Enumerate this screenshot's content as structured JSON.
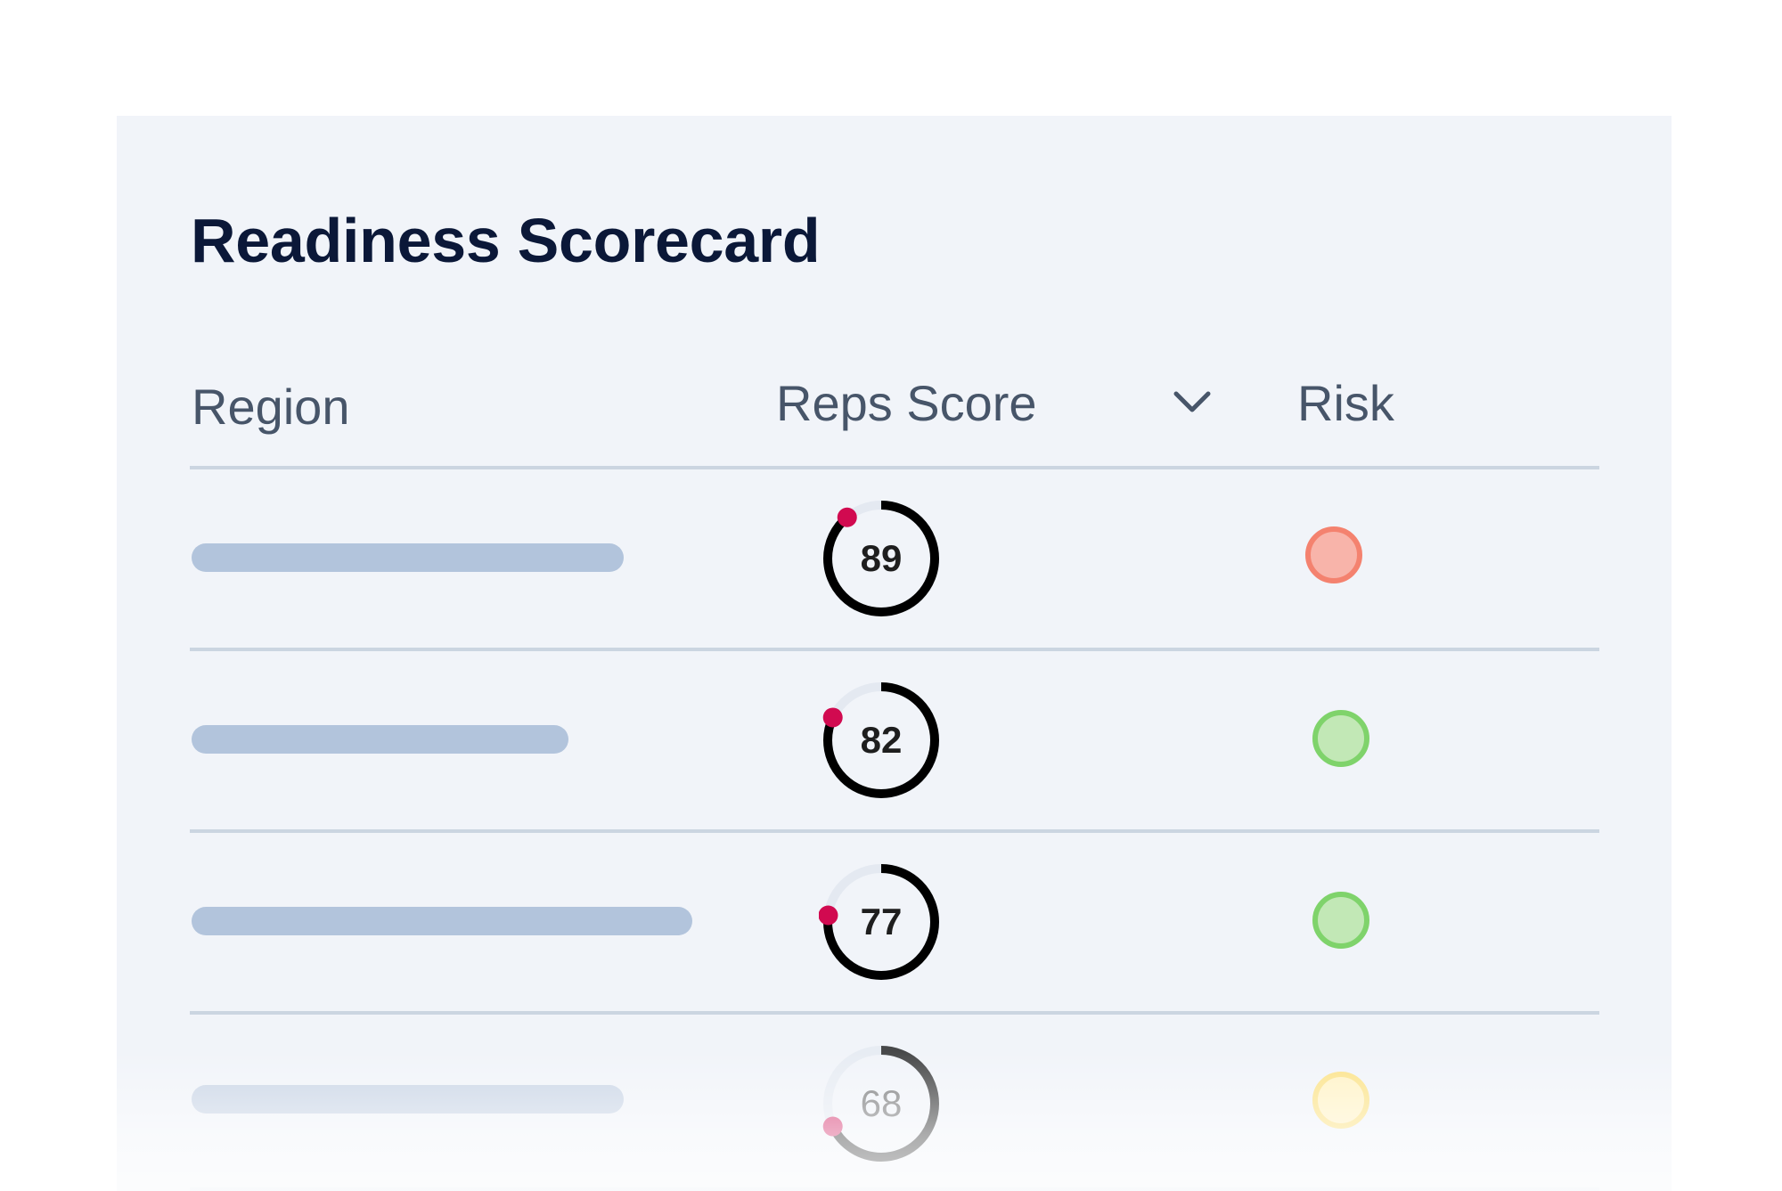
{
  "scorecard": {
    "title": "Readiness Scorecard",
    "columns": {
      "region": "Region",
      "reps_score": "Reps Score",
      "risk": "Risk"
    },
    "sort_icon": "chevron-down-icon",
    "rows": [
      {
        "score": "89",
        "score_value": 89,
        "risk_level": "high",
        "risk_fill": "#f8b4aa",
        "risk_border": "#f4826f"
      },
      {
        "score": "82",
        "score_value": 82,
        "risk_level": "low",
        "risk_fill": "#c2e8b6",
        "risk_border": "#7fd36b"
      },
      {
        "score": "77",
        "score_value": 77,
        "risk_level": "low",
        "risk_fill": "#c2e8b6",
        "risk_border": "#7fd36b"
      },
      {
        "score": "68",
        "score_value": 68,
        "risk_level": "medium",
        "risk_fill": "#fff3c7",
        "risk_border": "#fbe38b"
      }
    ],
    "colors": {
      "title": "#0b1838",
      "header_text": "#475569",
      "ring": "#000000",
      "ring_track": "#e4e9f1",
      "marker": "#d10a50"
    }
  }
}
